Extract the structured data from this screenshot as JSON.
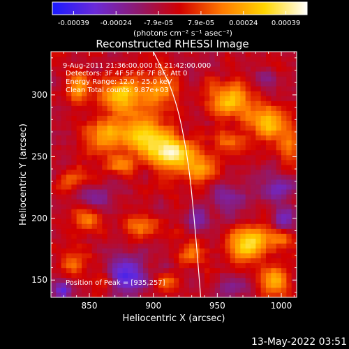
{
  "chart_data": {
    "type": "heatmap",
    "title": "Reconstructed RHESSI Image",
    "xlabel": "Heliocentric X (arcsec)",
    "ylabel": "Heliocentric Y (arcsec)",
    "xlim": [
      820,
      1012
    ],
    "ylim": [
      136,
      335
    ],
    "x_ticks": [
      "850",
      "900",
      "950",
      "1000"
    ],
    "y_ticks": [
      "150",
      "200",
      "250",
      "300"
    ],
    "annotations": [
      "9-Aug-2011 21:36:00.000 to 21:42:00.000",
      "Detectors: 3F 4F 5F 6F 7F 8F, Att 0",
      "Energy Range: 12.0 - 25.0 keV",
      "Clean     Total counts: 9.87e+03"
    ],
    "peak_label": "Position of Peak = [935,257]",
    "peak_position": [
      935,
      257
    ],
    "colorbar": {
      "ticks": [
        "-0.00039",
        "-0.00024",
        "-7.9e-05",
        "7.9e-05",
        "0.00024",
        "0.00039"
      ],
      "range": [
        -0.00039,
        0.00039
      ],
      "unit_label": "(photons cm⁻² s⁻¹ asec⁻²)",
      "colors": [
        "#1a1aff",
        "#6a2ad8",
        "#8e1a70",
        "#d20000",
        "#ff7a00",
        "#ffd600",
        "#ffffff"
      ]
    },
    "limb_curve_xy": [
      [
        900,
        335
      ],
      [
        917,
        300
      ],
      [
        927,
        250
      ],
      [
        932,
        200
      ],
      [
        936,
        150
      ],
      [
        937,
        136
      ]
    ],
    "hotspots": [
      {
        "x": 842,
        "y": 307,
        "value": 0.0002,
        "rx": 10,
        "ry": 14
      },
      {
        "x": 875,
        "y": 300,
        "value": 0.00028,
        "rx": 18,
        "ry": 16
      },
      {
        "x": 905,
        "y": 305,
        "value": 0.00022,
        "rx": 14,
        "ry": 14
      },
      {
        "x": 893,
        "y": 268,
        "value": 0.0003,
        "rx": 20,
        "ry": 16
      },
      {
        "x": 862,
        "y": 268,
        "value": 0.00024,
        "rx": 14,
        "ry": 12
      },
      {
        "x": 915,
        "y": 253,
        "value": 0.00036,
        "rx": 18,
        "ry": 14
      },
      {
        "x": 937,
        "y": 240,
        "value": 0.0002,
        "rx": 16,
        "ry": 12
      },
      {
        "x": 960,
        "y": 297,
        "value": 0.00026,
        "rx": 20,
        "ry": 14
      },
      {
        "x": 990,
        "y": 278,
        "value": 0.0003,
        "rx": 16,
        "ry": 12
      },
      {
        "x": 960,
        "y": 262,
        "value": 0.00018,
        "rx": 14,
        "ry": 10
      },
      {
        "x": 1005,
        "y": 260,
        "value": 0.00016,
        "rx": 10,
        "ry": 12
      },
      {
        "x": 838,
        "y": 232,
        "value": 0.00014,
        "rx": 12,
        "ry": 10
      },
      {
        "x": 872,
        "y": 244,
        "value": 0.00016,
        "rx": 12,
        "ry": 8
      },
      {
        "x": 850,
        "y": 200,
        "value": 0.00018,
        "rx": 12,
        "ry": 10
      },
      {
        "x": 890,
        "y": 196,
        "value": 0.00016,
        "rx": 14,
        "ry": 10
      },
      {
        "x": 930,
        "y": 170,
        "value": 0.00018,
        "rx": 12,
        "ry": 10
      },
      {
        "x": 975,
        "y": 180,
        "value": 0.00032,
        "rx": 16,
        "ry": 14
      },
      {
        "x": 1000,
        "y": 185,
        "value": 0.00018,
        "rx": 10,
        "ry": 10
      },
      {
        "x": 995,
        "y": 150,
        "value": 0.00024,
        "rx": 12,
        "ry": 12
      },
      {
        "x": 838,
        "y": 165,
        "value": 0.00014,
        "rx": 12,
        "ry": 10
      },
      {
        "x": 862,
        "y": 150,
        "value": 0.00016,
        "rx": 10,
        "ry": 8
      },
      {
        "x": 910,
        "y": 150,
        "value": 0.00012,
        "rx": 10,
        "ry": 8
      }
    ],
    "coldspots": [
      {
        "x": 878,
        "y": 155,
        "value": -0.0003,
        "rx": 16,
        "ry": 14
      },
      {
        "x": 830,
        "y": 142,
        "value": -0.00026,
        "rx": 8,
        "ry": 8
      },
      {
        "x": 852,
        "y": 218,
        "value": -0.00016,
        "rx": 12,
        "ry": 10
      },
      {
        "x": 960,
        "y": 215,
        "value": -0.00014,
        "rx": 16,
        "ry": 14
      },
      {
        "x": 935,
        "y": 200,
        "value": -0.00012,
        "rx": 10,
        "ry": 10
      },
      {
        "x": 995,
        "y": 225,
        "value": -0.00018,
        "rx": 12,
        "ry": 12
      },
      {
        "x": 962,
        "y": 145,
        "value": -0.00016,
        "rx": 12,
        "ry": 10
      },
      {
        "x": 990,
        "y": 312,
        "value": -0.00014,
        "rx": 10,
        "ry": 10
      },
      {
        "x": 1002,
        "y": 200,
        "value": -0.0002,
        "rx": 8,
        "ry": 10
      }
    ]
  },
  "footer": {
    "timestamp": "13-May-2022 03:51"
  }
}
